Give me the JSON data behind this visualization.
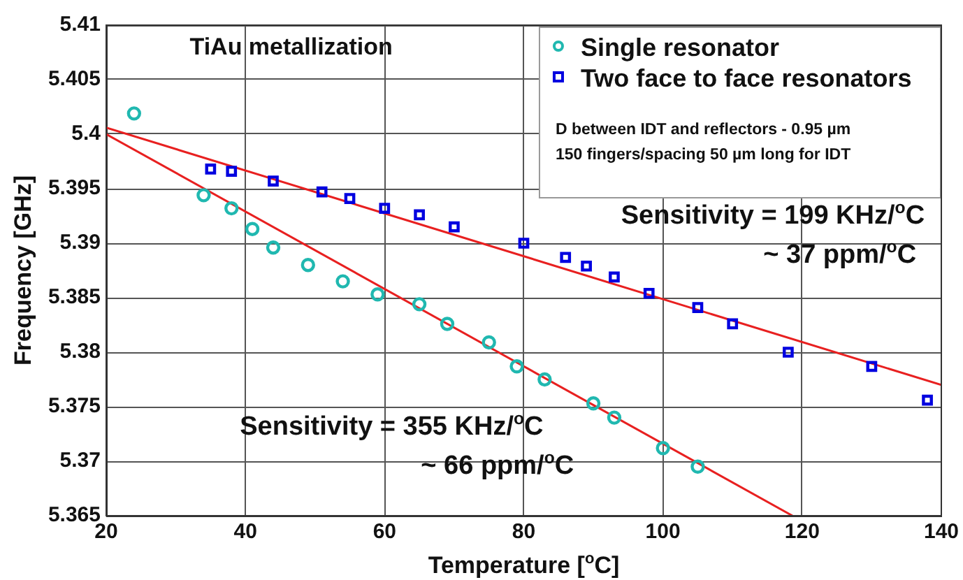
{
  "chart_data": {
    "type": "scatter",
    "xlabel": "Temperature [$^{o}$C]",
    "ylabel": "Frequency [GHz]",
    "xlim": [
      20,
      140
    ],
    "xticks": [
      20,
      40,
      60,
      80,
      100,
      120,
      140
    ],
    "ylim": [
      5.365,
      5.41
    ],
    "yticks": [
      5.365,
      5.37,
      5.375,
      5.38,
      5.385,
      5.39,
      5.395,
      5.4,
      5.405,
      5.41
    ],
    "grid": true,
    "legend": "top right",
    "annotations": [
      "TiAu metallization",
      "D between IDT and reflectors - 0.95 µm",
      "150 fingers/spacing 50 µm long for IDT",
      "Sensitivity = 199 KHz/$^{o}$C",
      "~ 37 ppm/$^{o}$C",
      "Sensitivity = 355 KHz/$^{o}$C",
      "~ 66 ppm/$^{o}$C"
    ],
    "series": [
      {
        "name": "Single resonator",
        "color": "#20b8b0",
        "marker": "circle",
        "x": [
          24,
          34,
          38,
          41,
          44,
          49,
          54,
          59,
          65,
          69,
          75,
          79,
          83,
          90,
          93,
          100,
          105
        ],
        "values": [
          5.4019,
          5.3944,
          5.3932,
          5.3913,
          5.3896,
          5.388,
          5.3865,
          5.3853,
          5.3844,
          5.3826,
          5.3809,
          5.3787,
          5.3775,
          5.3753,
          5.374,
          5.3712,
          5.3695
        ]
      },
      {
        "name": "Two face to face resonators",
        "color": "#0000e0",
        "marker": "square",
        "x": [
          35,
          38,
          44,
          51,
          55,
          60,
          65,
          70,
          80,
          86,
          89,
          93,
          98,
          105,
          110,
          118,
          130,
          138
        ],
        "values": [
          5.3968,
          5.3966,
          5.3957,
          5.3947,
          5.3941,
          5.3932,
          5.3926,
          5.3915,
          5.39,
          5.3887,
          5.3879,
          5.3869,
          5.3854,
          5.3841,
          5.3826,
          5.38,
          5.3787,
          5.3756
        ]
      },
      {
        "type": "line",
        "color": "#e82020",
        "marker": "none",
        "x": [
          20,
          140
        ],
        "values": [
          5.4006,
          5.377
        ]
      },
      {
        "type": "line",
        "color": "#e82020",
        "marker": "none",
        "x": [
          20,
          118.6
        ],
        "values": [
          5.4,
          5.365
        ]
      }
    ]
  }
}
